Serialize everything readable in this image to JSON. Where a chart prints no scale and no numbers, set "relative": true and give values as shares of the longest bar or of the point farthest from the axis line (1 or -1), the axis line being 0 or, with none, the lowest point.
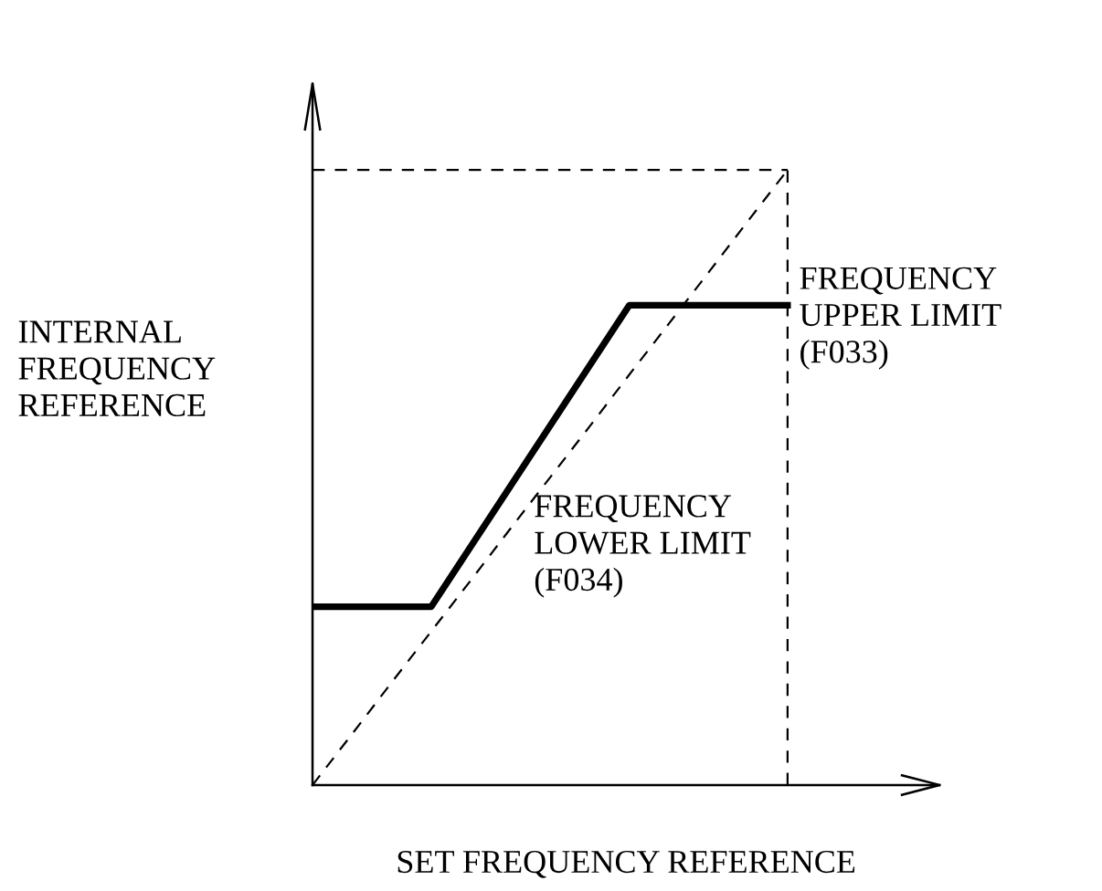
{
  "chart_data": {
    "type": "line",
    "relative": true,
    "xlabel": "SET FREQUENCY REFERENCE",
    "ylabel": "INTERNAL\nFREQUENCY\nREFERENCE",
    "categories": [
      null,
      null,
      null,
      null,
      null,
      null,
      null,
      null,
      null,
      null,
      null,
      null,
      null
    ],
    "series": [
      {
        "color": "#000000",
        "line_style": "dashed",
        "values": [
          0,
          0.083,
          0.167,
          0.25,
          0.333,
          0.417,
          0.5,
          0.583,
          0.667,
          0.75,
          0.833,
          0.917,
          1
        ]
      },
      {
        "color": "#000000",
        "line_style": "solid",
        "values": [
          0.29,
          0.29,
          0.29,
          0.29,
          0.388,
          0.486,
          0.584,
          0.682,
          0.78,
          0.78,
          0.78,
          0.78,
          0.78
        ]
      }
    ],
    "ref_lines": [
      {
        "axis": "y",
        "value": 1,
        "line_style": "dashed",
        "color": "#000000"
      }
    ],
    "annotations": [
      "FREQUENCY\nUPPER LIMIT\n(F033)",
      "FREQUENCY\nLOWER LIMIT\n(F034)"
    ]
  }
}
